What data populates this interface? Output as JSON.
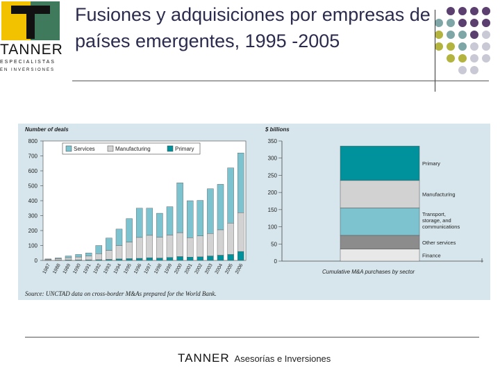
{
  "logo": {
    "word": "TANNER",
    "sub1": "ESPECIALISTAS",
    "sub2": "EN INVERSIONES"
  },
  "slide": {
    "title": "Fusiones y adquisiciones por empresas de países emergentes, 1995 -2005"
  },
  "footer": {
    "logo": "TANNER",
    "text": "Asesorías e Inversiones"
  },
  "colors": {
    "services": "#7dc3cf",
    "manufacturing": "#d2d2d2",
    "primary": "#00929c",
    "transport": "#7dc3cf",
    "other": "#8c8c8c",
    "finance": "#e8e8e8",
    "panel": "#d6e6ec",
    "dot_purple": "#5b3f6e",
    "dot_teal": "#7fa6a6",
    "dot_olive": "#b3b33f",
    "dot_grey": "#c9c9d6"
  },
  "source": "Source: UNCTAD data on cross-border M&As prepared for the World Bank.",
  "chart_data": [
    {
      "type": "bar",
      "stacked": true,
      "ylabel": "Number of deals",
      "ylim": [
        0,
        800
      ],
      "yticks": [
        0,
        100,
        200,
        300,
        400,
        500,
        600,
        700,
        800
      ],
      "legend_position": "top",
      "categories": [
        "1987",
        "1988",
        "1989",
        "1990",
        "1991",
        "1992",
        "1993",
        "1994",
        "1995",
        "1996",
        "1997",
        "1998",
        "1999",
        "2000",
        "2001",
        "2002",
        "2003",
        "2004",
        "2005",
        "2006"
      ],
      "series": [
        {
          "name": "Primary",
          "values": [
            2,
            2,
            3,
            3,
            4,
            5,
            7,
            10,
            12,
            14,
            18,
            16,
            20,
            26,
            22,
            24,
            30,
            35,
            40,
            60
          ]
        },
        {
          "name": "Manufacturing",
          "values": [
            5,
            10,
            15,
            20,
            25,
            40,
            60,
            90,
            110,
            140,
            150,
            140,
            150,
            160,
            130,
            140,
            150,
            170,
            210,
            260
          ]
        },
        {
          "name": "Services",
          "values": [
            3,
            5,
            12,
            17,
            21,
            55,
            83,
            110,
            158,
            196,
            182,
            160,
            190,
            334,
            248,
            238,
            300,
            305,
            370,
            400
          ]
        }
      ]
    },
    {
      "type": "bar",
      "stacked": true,
      "ylabel": "$ billions",
      "xlabel": "Cumulative M&A purchases by sector",
      "ylim": [
        0,
        350
      ],
      "yticks": [
        0,
        50,
        100,
        150,
        200,
        250,
        300,
        350
      ],
      "categories": [
        ""
      ],
      "series": [
        {
          "name": "Finance",
          "values": [
            35
          ]
        },
        {
          "name": "Other services",
          "values": [
            40
          ]
        },
        {
          "name": "Transport, storage, and communications",
          "values": [
            80
          ]
        },
        {
          "name": "Manufacturing",
          "values": [
            80
          ]
        },
        {
          "name": "Primary",
          "values": [
            100
          ]
        }
      ]
    }
  ]
}
